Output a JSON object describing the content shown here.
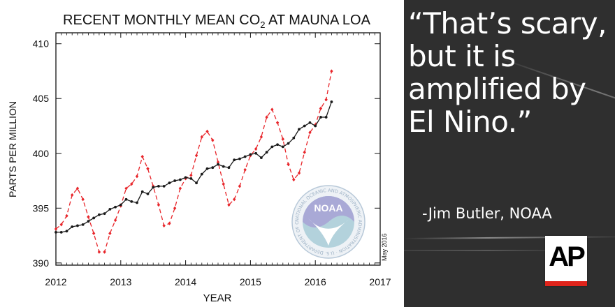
{
  "chart_data": {
    "type": "line",
    "title": "RECENT MONTHLY MEAN CO",
    "title_subscript": "2",
    "title_suffix": " AT MAUNA LOA",
    "xlabel": "YEAR",
    "ylabel": "PARTS PER MILLION",
    "xlim": [
      2012,
      2017
    ],
    "ylim": [
      389.8,
      411
    ],
    "x_ticks": [
      2012,
      2013,
      2014,
      2015,
      2016,
      2017
    ],
    "y_ticks": [
      390,
      395,
      400,
      405,
      410
    ],
    "grid": false,
    "legend": "none",
    "series": [
      {
        "style": "dashed red with diamond markers (monthly mean)",
        "color": "#e8262b",
        "values": [
          393.1,
          393.5,
          394.3,
          396.2,
          396.8,
          395.8,
          394.2,
          392.7,
          391.0,
          391.0,
          392.7,
          393.9,
          395.2,
          396.8,
          397.2,
          397.9,
          399.7,
          398.6,
          397.0,
          395.3,
          393.4,
          393.6,
          395.0,
          396.8,
          397.7,
          398.0,
          399.8,
          401.5,
          402.0,
          401.2,
          399.2,
          397.2,
          395.3,
          395.8,
          397.0,
          398.5,
          399.8,
          400.4,
          401.5,
          403.3,
          404.0,
          402.8,
          401.3,
          399.0,
          397.6,
          398.2,
          400.1,
          401.9,
          402.6,
          404.1,
          404.9,
          407.5
        ]
      },
      {
        "style": "solid black with dot markers (seasonally corrected)",
        "color": "#1a1a1a",
        "values": [
          392.8,
          392.8,
          392.9,
          393.3,
          393.4,
          393.5,
          393.8,
          394.1,
          394.4,
          394.5,
          394.9,
          395.1,
          395.3,
          395.8,
          395.6,
          395.5,
          396.5,
          396.3,
          396.9,
          397.0,
          397.0,
          397.3,
          397.5,
          397.6,
          397.8,
          397.7,
          397.3,
          398.1,
          398.6,
          398.7,
          399.0,
          398.8,
          398.7,
          399.4,
          399.5,
          399.7,
          399.9,
          400.0,
          399.6,
          400.1,
          400.6,
          400.8,
          400.6,
          400.9,
          401.4,
          402.2,
          402.5,
          402.8,
          402.5,
          403.3,
          403.3,
          404.7
        ]
      }
    ],
    "annotations": [
      "May 2016"
    ]
  },
  "logo": {
    "name": "NOAA",
    "ring_text": "NATIONAL OCEANIC AND ATMOSPHERIC ADMINISTRATION · U.S. DEPARTMENT OF COMMERCE"
  },
  "quote": {
    "text": "“That’s scary,\nbut it is\namplified by\nEl Nino.”",
    "attribution": "-Jim Butler, NOAA",
    "ap_logo": "AP"
  },
  "colors": {
    "quote_bg": "#2f2f2f",
    "ap_red": "#e0241b"
  }
}
